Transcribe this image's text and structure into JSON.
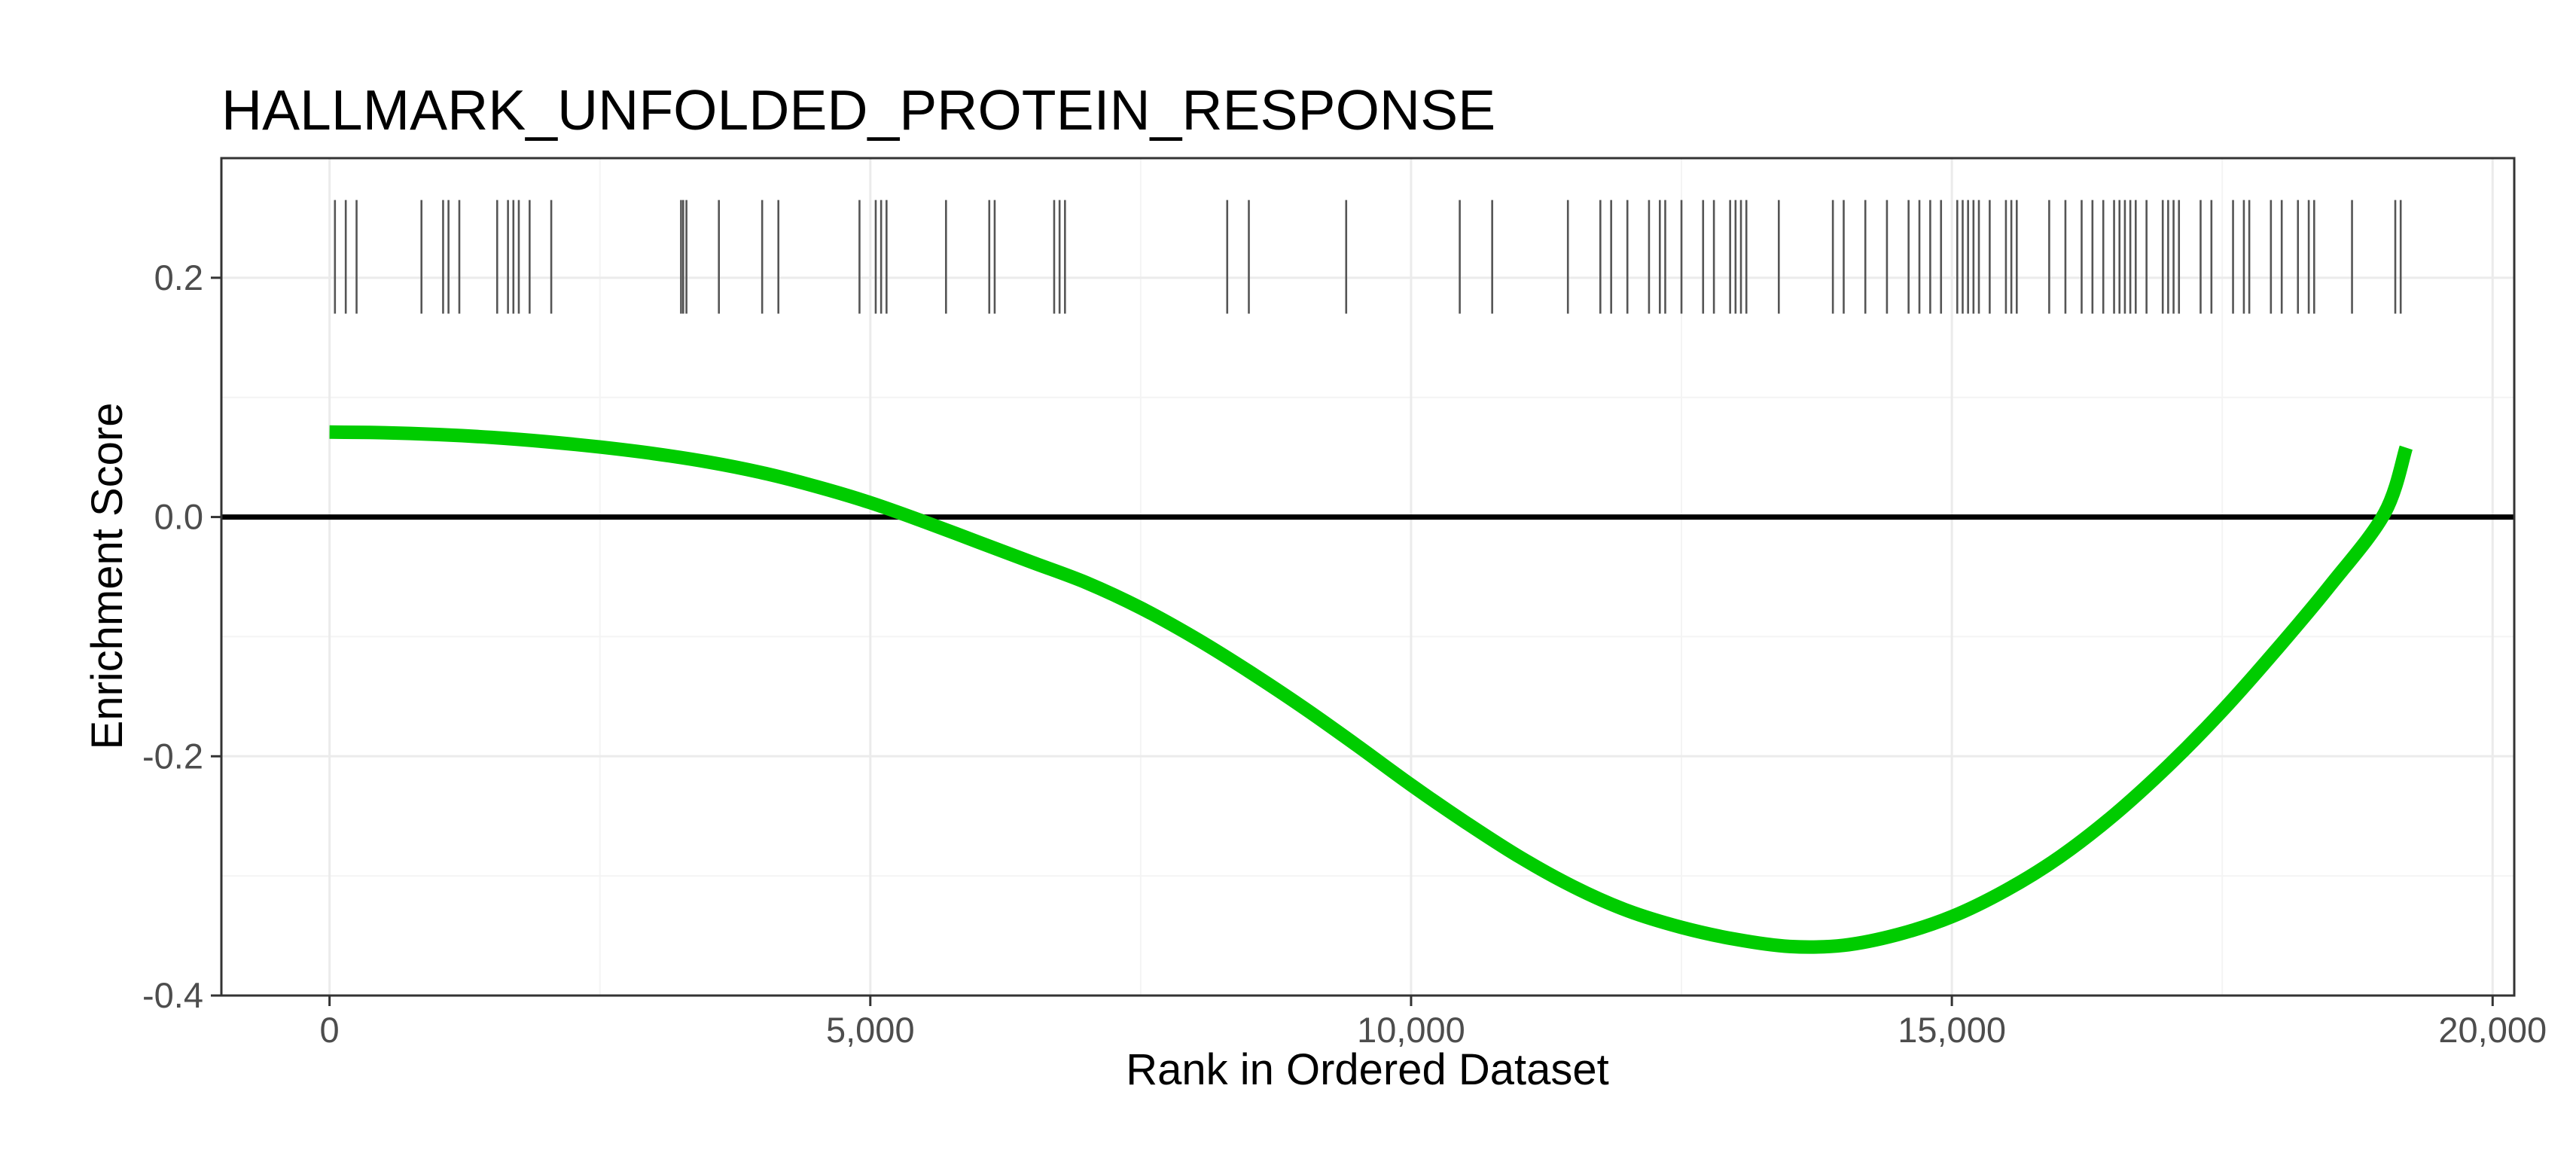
{
  "chart_data": {
    "type": "line",
    "title": "HALLMARK_UNFOLDED_PROTEIN_RESPONSE",
    "xlabel": "Rank in Ordered Dataset",
    "ylabel": "Enrichment Score",
    "xlim": [
      -1000,
      20200
    ],
    "ylim": [
      -0.4,
      0.3
    ],
    "x_ticks": [
      0,
      5000,
      10000,
      15000,
      20000
    ],
    "x_tick_labels": [
      "0",
      "5,000",
      "10,000",
      "15,000",
      "20,000"
    ],
    "y_ticks": [
      -0.4,
      -0.2,
      0.0,
      0.2
    ],
    "y_tick_labels": [
      "-0.4",
      "-0.2",
      "0.0",
      "0.2"
    ],
    "grid": true,
    "reference_line_y": 0,
    "series": [
      {
        "color": "#00CC00",
        "x": [
          0,
          500,
          1000,
          1500,
          2000,
          2500,
          3000,
          3500,
          4000,
          4500,
          5000,
          5500,
          6000,
          6500,
          7000,
          7500,
          8000,
          8500,
          9000,
          9500,
          10000,
          10500,
          11000,
          11500,
          12000,
          12500,
          13000,
          13500,
          14000,
          14500,
          15000,
          15500,
          16000,
          16500,
          17000,
          17500,
          18000,
          18500,
          19000,
          19200
        ],
        "y": [
          0.071,
          0.0705,
          0.069,
          0.0665,
          0.063,
          0.0585,
          0.053,
          0.046,
          0.037,
          0.0255,
          0.012,
          -0.004,
          -0.021,
          -0.038,
          -0.055,
          -0.076,
          -0.101,
          -0.129,
          -0.159,
          -0.191,
          -0.224,
          -0.255,
          -0.284,
          -0.309,
          -0.329,
          -0.343,
          -0.353,
          -0.359,
          -0.358,
          -0.349,
          -0.334,
          -0.312,
          -0.284,
          -0.249,
          -0.208,
          -0.162,
          -0.111,
          -0.057,
          0.003,
          0.058
        ]
      }
    ],
    "gene_hit_ranks": {
      "y_range": [
        0.17,
        0.265
      ],
      "ranks": [
        50,
        150,
        250,
        850,
        1050,
        1100,
        1200,
        1550,
        1650,
        1700,
        1750,
        1850,
        2050,
        3250,
        3270,
        3300,
        3600,
        4000,
        4150,
        4900,
        5050,
        5100,
        5150,
        5700,
        6100,
        6150,
        6700,
        6750,
        6800,
        8300,
        8500,
        9400,
        10450,
        10750,
        11450,
        11750,
        11850,
        12000,
        12200,
        12300,
        12350,
        12500,
        12700,
        12800,
        12950,
        13000,
        13050,
        13100,
        13400,
        13900,
        14000,
        14200,
        14400,
        14600,
        14700,
        14800,
        14900,
        15050,
        15100,
        15150,
        15200,
        15250,
        15350,
        15500,
        15550,
        15600,
        15900,
        16050,
        16200,
        16300,
        16400,
        16500,
        16550,
        16600,
        16650,
        16700,
        16800,
        16950,
        17000,
        17050,
        17100,
        17300,
        17400,
        17600,
        17700,
        17750,
        17950,
        18050,
        18200,
        18300,
        18350,
        18700,
        19100,
        19150
      ]
    }
  }
}
